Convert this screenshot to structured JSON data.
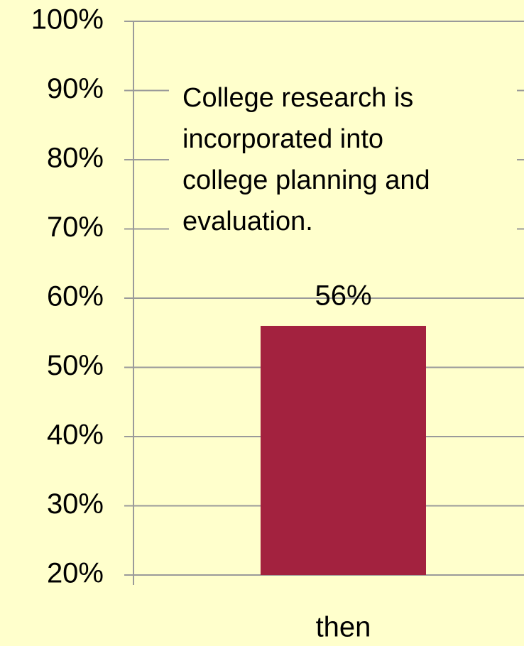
{
  "chart_data": {
    "type": "bar",
    "annotation": [
      "College research is",
      "incorporated into",
      "college planning and",
      "evaluation."
    ],
    "categories": [
      "then"
    ],
    "values": [
      56
    ],
    "value_labels": [
      "56%"
    ],
    "color": "#a3223f",
    "ylim": [
      20,
      100
    ],
    "yticks": [
      {
        "value": 20,
        "label": "20%"
      },
      {
        "value": 30,
        "label": "30%"
      },
      {
        "value": 40,
        "label": "40%"
      },
      {
        "value": 50,
        "label": "50%"
      },
      {
        "value": 60,
        "label": "60%"
      },
      {
        "value": 70,
        "label": "70%"
      },
      {
        "value": 80,
        "label": "80%"
      },
      {
        "value": 90,
        "label": "90%"
      },
      {
        "value": 100,
        "label": "100%"
      }
    ],
    "grid": true
  }
}
